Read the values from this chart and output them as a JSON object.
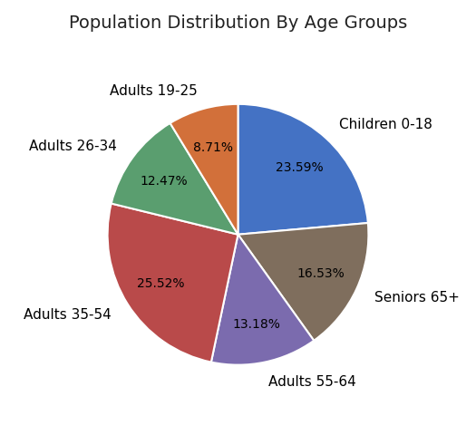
{
  "title": "Population Distribution By Age Groups",
  "labels": [
    "Children 0-18",
    "Seniors 65+",
    "Adults 55-64",
    "Adults 35-54",
    "Adults 26-34",
    "Adults 19-25"
  ],
  "values": [
    23.59,
    16.53,
    13.18,
    25.52,
    12.47,
    8.71
  ],
  "colors": [
    "#4472C4",
    "#7F6E5D",
    "#7B6BAE",
    "#B94A4A",
    "#5A9E6F",
    "#D2703A"
  ],
  "startangle": 90,
  "title_fontsize": 14,
  "label_fontsize": 11,
  "autopct_fontsize": 10,
  "background_color": "#ffffff"
}
